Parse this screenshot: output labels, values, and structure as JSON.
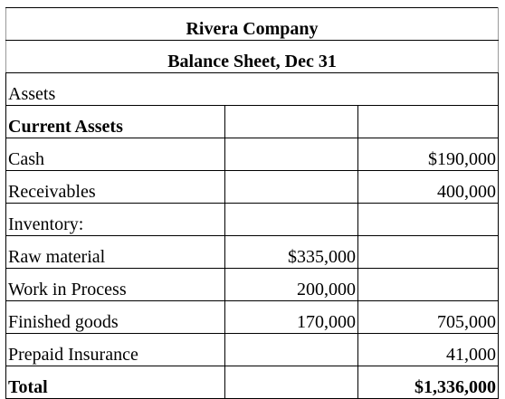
{
  "header": {
    "title": "Rivera Company",
    "subtitle": "Balance Sheet, Dec 31"
  },
  "table": {
    "section": "Assets",
    "rows": [
      [
        "Current Assets",
        null,
        null
      ],
      [
        "Cash",
        null,
        "$190,000"
      ],
      [
        "Receivables",
        null,
        "400,000"
      ],
      [
        "Inventory:",
        null,
        null
      ],
      [
        "Raw material",
        "$335,000",
        null
      ],
      [
        "Work in Process",
        "200,000",
        null
      ],
      [
        "Finished goods",
        "170,000",
        "705,000"
      ],
      [
        "Prepaid Insurance",
        null,
        "41,000"
      ],
      [
        "Total",
        null,
        "$1,336,000"
      ]
    ]
  }
}
